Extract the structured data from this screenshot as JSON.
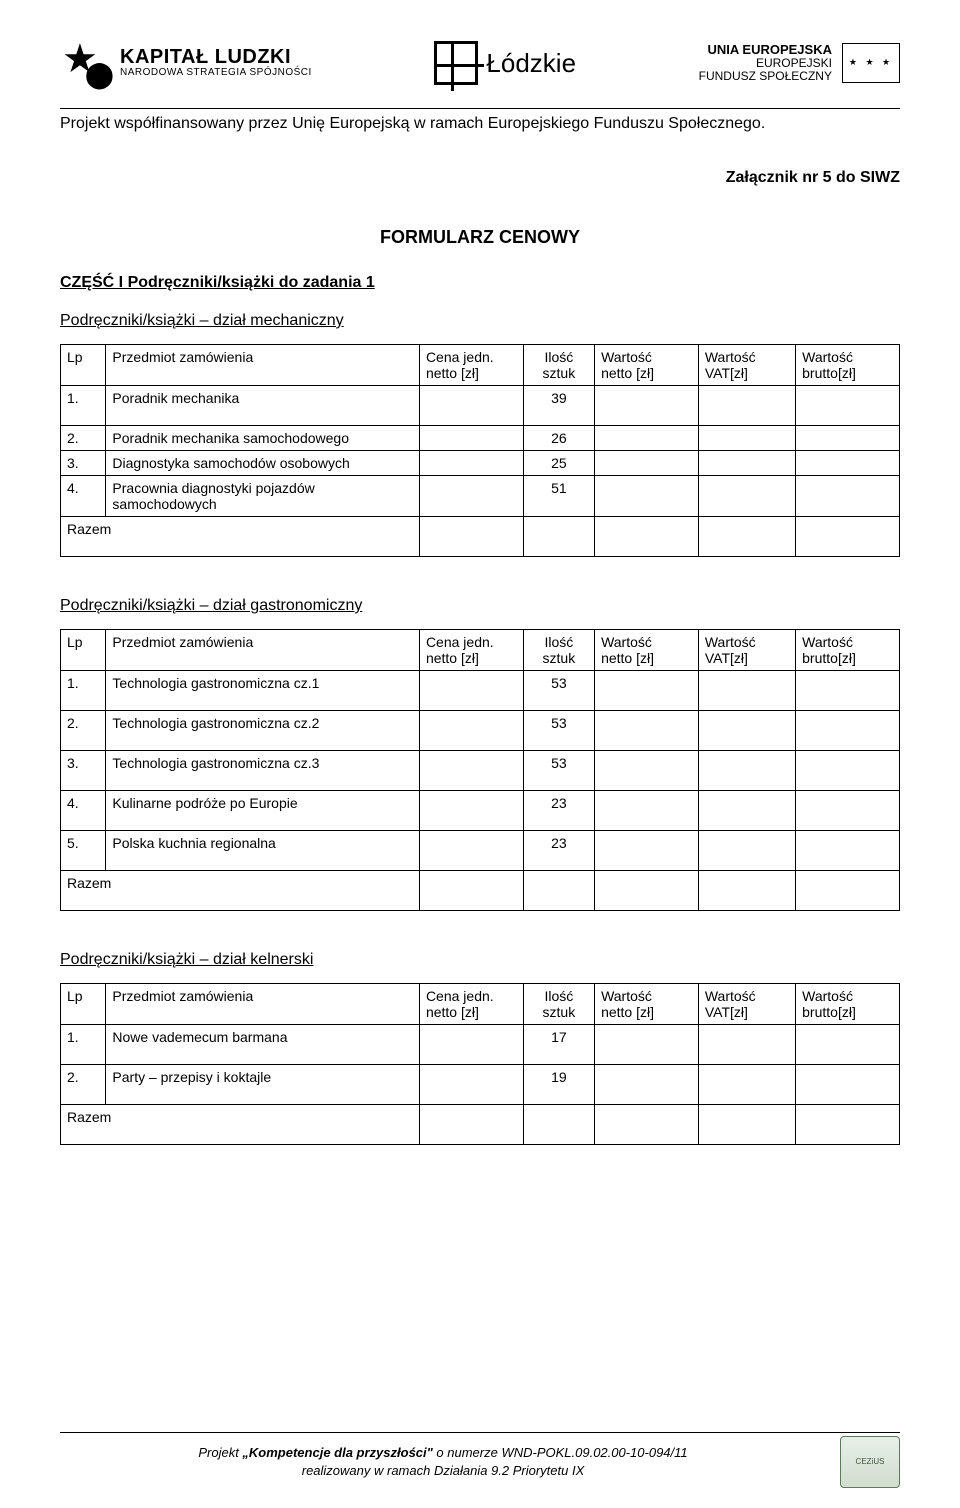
{
  "header": {
    "logo_left_line1": "KAPITAŁ LUDZKI",
    "logo_left_line2": "NARODOWA STRATEGIA SPÓJNOŚCI",
    "logo_mid": "Łódzkie",
    "logo_right_line1": "UNIA EUROPEJSKA",
    "logo_right_line2": "EUROPEJSKI",
    "logo_right_line3": "FUNDUSZ SPOŁECZNY",
    "eu_stars": "★ ★ ★"
  },
  "cofinance": "Projekt współfinansowany przez Unię Europejską w ramach Europejskiego Funduszu Społecznego.",
  "attachment": "Załącznik nr 5 do SIWZ",
  "form_title": "FORMULARZ CENOWY",
  "columns": {
    "lp": "Lp",
    "name": "Przedmiot zamówienia",
    "cj1": "Cena jedn.",
    "cj2": "netto [zł]",
    "il1": "Ilość",
    "il2": "sztuk",
    "wn1": "Wartość",
    "wn2": "netto [zł]",
    "wv1": "Wartość",
    "wv2": "VAT[zł]",
    "wb1": "Wartość",
    "wb2": "brutto[zł]"
  },
  "razem": "Razem",
  "section1": {
    "title": "CZĘŚĆ I Podręczniki/książki do zadania 1",
    "subtitle": "Podręczniki/książki – dział mechaniczny",
    "rows": [
      {
        "lp": "1.",
        "name": "Poradnik mechanika",
        "qty": "39"
      },
      {
        "lp": "2.",
        "name": "Poradnik mechanika samochodowego",
        "qty": "26"
      },
      {
        "lp": "3.",
        "name": "Diagnostyka samochodów osobowych",
        "qty": "25"
      },
      {
        "lp": "4.",
        "name": "Pracownia diagnostyki pojazdów samochodowych",
        "qty": "51"
      }
    ]
  },
  "section2": {
    "subtitle": "Podręczniki/książki – dział gastronomiczny",
    "rows": [
      {
        "lp": "1.",
        "name": "Technologia gastronomiczna cz.1",
        "qty": "53"
      },
      {
        "lp": "2.",
        "name": "Technologia gastronomiczna cz.2",
        "qty": "53"
      },
      {
        "lp": "3.",
        "name": "Technologia gastronomiczna cz.3",
        "qty": "53"
      },
      {
        "lp": "4.",
        "name": "Kulinarne podróże po Europie",
        "qty": "23"
      },
      {
        "lp": "5.",
        "name": "Polska kuchnia regionalna",
        "qty": "23"
      }
    ]
  },
  "section3": {
    "subtitle": "Podręczniki/książki – dział  kelnerski",
    "rows": [
      {
        "lp": "1.",
        "name": "Nowe vademecum barmana",
        "qty": "17"
      },
      {
        "lp": "2.",
        "name": "Party – przepisy i koktajle",
        "qty": "19"
      }
    ]
  },
  "footer": {
    "line1a": "Projekt ",
    "line1b": "„Kompetencje dla przyszłości\"",
    "line1c": "  o numerze WND-POKL.09.02.00-10-094/11",
    "line2": "realizowany w ramach Działania 9.2 Priorytetu IX",
    "badge": "CEZiUS"
  }
}
